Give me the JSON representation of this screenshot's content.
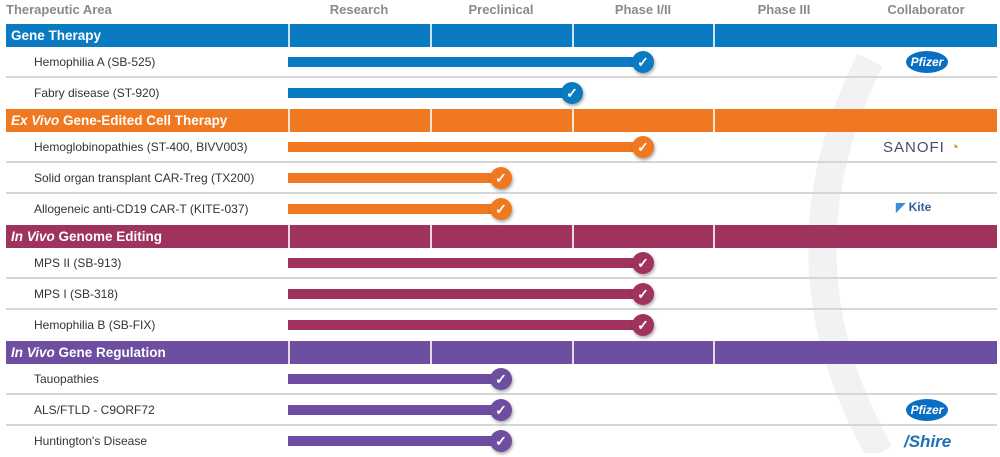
{
  "chart_data": {
    "type": "bar",
    "orientation": "horizontal",
    "title": "",
    "stages": [
      "Research",
      "Preclinical",
      "Phase I/II",
      "Phase III"
    ],
    "header": {
      "area": "Therapeutic Area",
      "collaborator": "Collaborator"
    },
    "groups": [
      {
        "name_prefix": "",
        "name": "Gene Therapy",
        "color": "#0a7bc2",
        "programs": [
          {
            "label": "Hemophilia A (SB-525)",
            "stage_progress": 2.5,
            "collaborator": "Pfizer"
          },
          {
            "label": "Fabry disease (ST-920)",
            "stage_progress": 2.0,
            "collaborator": ""
          }
        ]
      },
      {
        "name_prefix": "Ex Vivo",
        "name": " Gene-Edited Cell Therapy",
        "color": "#f07820",
        "programs": [
          {
            "label": "Hemoglobinopathies (ST-400, BIVV003)",
            "stage_progress": 2.5,
            "collaborator": "SANOFI"
          },
          {
            "label": "Solid organ transplant CAR-Treg (TX200)",
            "stage_progress": 1.5,
            "collaborator": ""
          },
          {
            "label": "Allogeneic anti-CD19 CAR-T (KITE-037)",
            "stage_progress": 1.5,
            "collaborator": "Kite"
          }
        ]
      },
      {
        "name_prefix": "In Vivo",
        "name": " Genome Editing",
        "color": "#a0325e",
        "programs": [
          {
            "label": "MPS II (SB-913)",
            "stage_progress": 2.5,
            "collaborator": ""
          },
          {
            "label": "MPS I (SB-318)",
            "stage_progress": 2.5,
            "collaborator": ""
          },
          {
            "label": "Hemophilia B (SB-FIX)",
            "stage_progress": 2.5,
            "collaborator": ""
          }
        ]
      },
      {
        "name_prefix": "In Vivo",
        "name": " Gene Regulation",
        "color": "#6e4ea0",
        "programs": [
          {
            "label": "Tauopathies",
            "stage_progress": 1.5,
            "collaborator": ""
          },
          {
            "label": "ALS/FTLD - C9ORF72",
            "stage_progress": 1.5,
            "collaborator": "Pfizer"
          },
          {
            "label": "Huntington's Disease",
            "stage_progress": 1.5,
            "collaborator": "Shire"
          }
        ]
      }
    ],
    "marker_icon": "check-circle-icon"
  }
}
